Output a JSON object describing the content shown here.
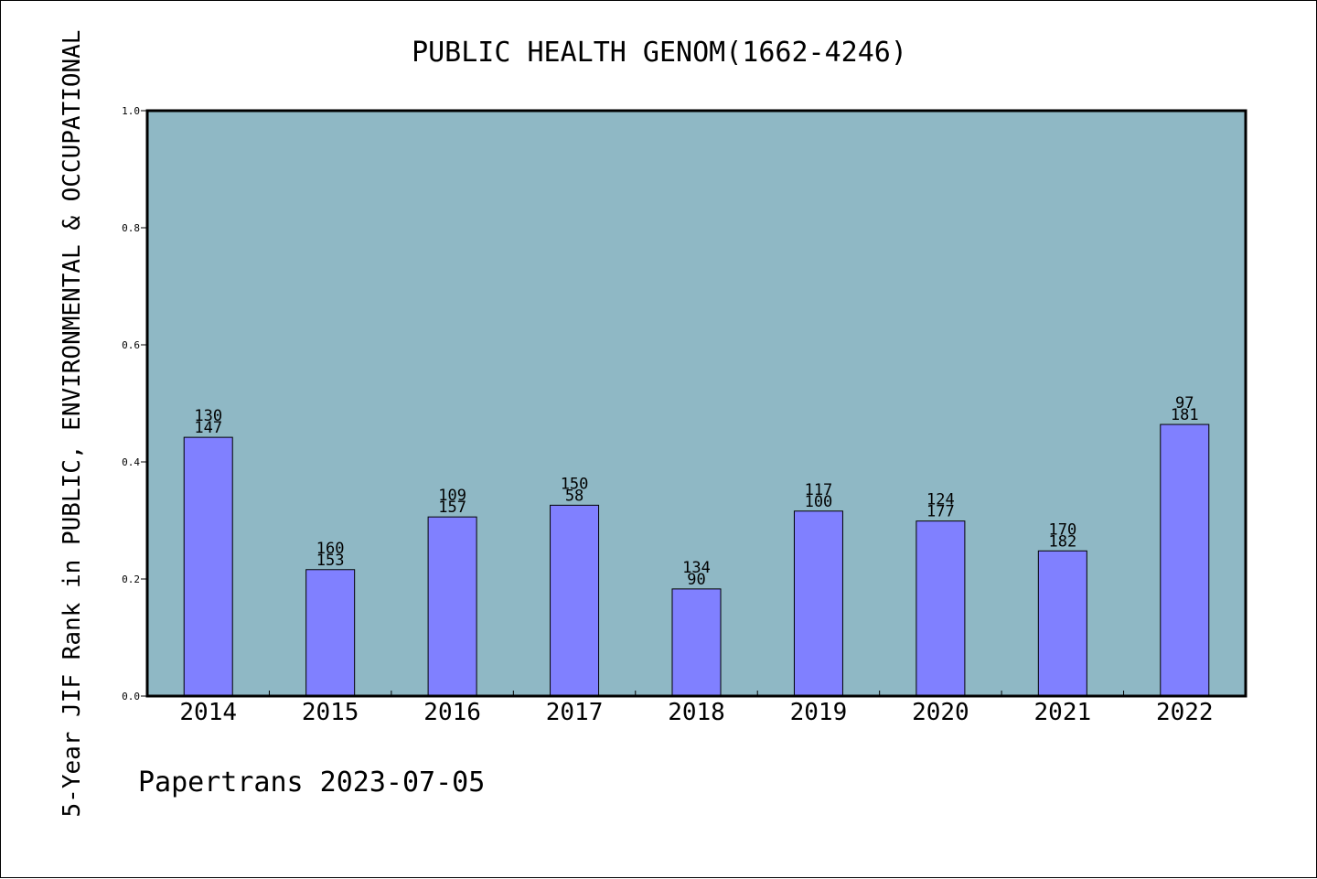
{
  "chart_data": {
    "type": "bar",
    "title": "PUBLIC HEALTH GENOM(1662-4246)",
    "ylabel": "5-Year JIF Rank in PUBLIC, ENVIRONMENTAL & OCCUPATIONAL",
    "xlabel": "",
    "ylim": [
      0,
      1.0
    ],
    "yticks": [
      "0.0",
      "0.2",
      "0.4",
      "0.6",
      "0.8",
      "1.0"
    ],
    "grid": false,
    "categories": [
      "2014",
      "2015",
      "2016",
      "2017",
      "2018",
      "2019",
      "2020",
      "2021",
      "2022"
    ],
    "values": [
      0.442,
      0.216,
      0.306,
      0.326,
      0.183,
      0.316,
      0.299,
      0.248,
      0.464
    ],
    "labels": [
      [
        "130",
        "147"
      ],
      [
        "160",
        "153"
      ],
      [
        "109",
        "157"
      ],
      [
        "150",
        "58"
      ],
      [
        "134",
        "90"
      ],
      [
        "117",
        "100"
      ],
      [
        "124",
        "177"
      ],
      [
        "170",
        "182"
      ],
      [
        "97",
        "181"
      ]
    ],
    "colors": {
      "plot_background": "#8fb8c5",
      "bar_fill": "#8080ff",
      "bar_edge": "#000000"
    }
  },
  "footer": {
    "watermark": "Papertrans 2023-07-05"
  }
}
